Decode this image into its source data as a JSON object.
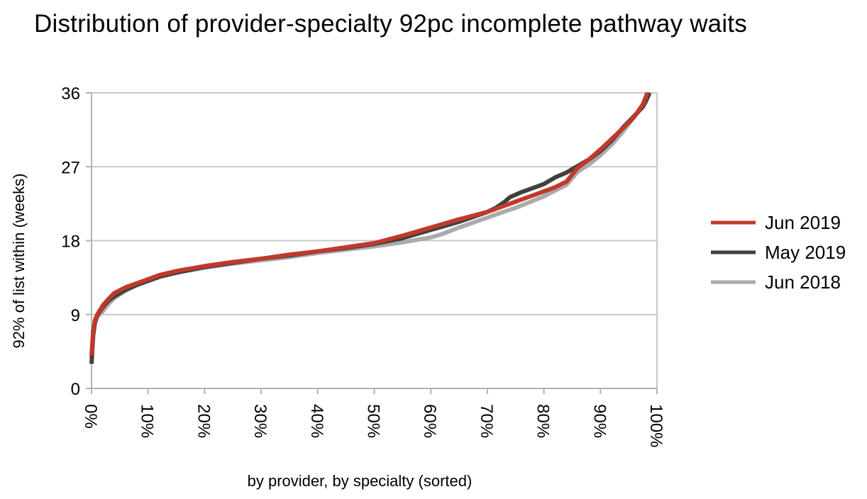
{
  "chart_data": {
    "type": "line",
    "title": "Distribution of provider-specialty 92pc incomplete pathway waits",
    "xlabel": "by provider, by specialty (sorted)",
    "ylabel": "92% of list within (weeks)",
    "xlim": [
      0,
      100
    ],
    "ylim": [
      0,
      36
    ],
    "xticks": [
      0,
      10,
      20,
      30,
      40,
      50,
      60,
      70,
      80,
      90,
      100
    ],
    "xtick_labels": [
      "0%",
      "10%",
      "20%",
      "30%",
      "40%",
      "50%",
      "60%",
      "70%",
      "80%",
      "90%",
      "100%"
    ],
    "yticks": [
      0,
      9,
      18,
      27,
      36
    ],
    "ytick_labels": [
      "0",
      "9",
      "18",
      "27",
      "36"
    ],
    "grid": "horizontal",
    "legend": "right",
    "series": [
      {
        "name": "Jun 2018",
        "color": "#ababab",
        "x": [
          0,
          0.3,
          0.6,
          1,
          2,
          3,
          4,
          6,
          8,
          10,
          12,
          15,
          20,
          25,
          30,
          35,
          40,
          45,
          50,
          55,
          60,
          62,
          65,
          70,
          72,
          75,
          80,
          82,
          84,
          86,
          88,
          90,
          92,
          94,
          96,
          98,
          98.7
        ],
        "y": [
          3.8,
          6.8,
          8.0,
          8.7,
          9.4,
          10.3,
          11.0,
          11.9,
          12.6,
          13.1,
          13.6,
          14.1,
          14.7,
          15.2,
          15.6,
          16.0,
          16.5,
          16.9,
          17.3,
          17.8,
          18.4,
          18.8,
          19.6,
          20.8,
          21.3,
          22.0,
          23.4,
          24.1,
          24.8,
          26.4,
          27.3,
          28.4,
          29.7,
          31.3,
          33.1,
          34.8,
          36.0
        ]
      },
      {
        "name": "May 2019",
        "color": "#404040",
        "x": [
          0,
          0.3,
          0.6,
          1,
          2,
          3,
          4,
          6,
          8,
          10,
          12,
          15,
          20,
          25,
          30,
          35,
          40,
          45,
          50,
          55,
          60,
          65,
          70,
          71.5,
          73,
          74,
          76,
          78,
          80,
          82,
          84,
          86,
          88,
          90,
          92,
          94,
          96,
          97.5,
          98.7
        ],
        "y": [
          3.0,
          6.5,
          8.0,
          8.9,
          9.9,
          10.7,
          11.2,
          12.0,
          12.6,
          13.1,
          13.6,
          14.1,
          14.8,
          15.3,
          15.8,
          16.2,
          16.7,
          17.1,
          17.6,
          18.3,
          19.3,
          20.3,
          21.5,
          22.0,
          22.7,
          23.3,
          23.9,
          24.4,
          24.9,
          25.7,
          26.3,
          27.1,
          27.9,
          28.9,
          30.2,
          31.8,
          33.2,
          34.3,
          36.0
        ]
      },
      {
        "name": "Jun 2019",
        "color": "#c0392b",
        "x": [
          0,
          0.3,
          0.6,
          1,
          2,
          3,
          4,
          6,
          8,
          10,
          12,
          15,
          20,
          25,
          30,
          35,
          40,
          45,
          50,
          55,
          60,
          65,
          70,
          72,
          74,
          76,
          78,
          80,
          82,
          84,
          86,
          88,
          90,
          92,
          94,
          96,
          97.5,
          98.3
        ],
        "y": [
          4.0,
          7.0,
          8.3,
          9.0,
          10.1,
          10.9,
          11.6,
          12.3,
          12.8,
          13.3,
          13.8,
          14.3,
          14.9,
          15.4,
          15.8,
          16.3,
          16.7,
          17.2,
          17.7,
          18.6,
          19.6,
          20.6,
          21.5,
          22.0,
          22.5,
          23.0,
          23.5,
          24.0,
          24.5,
          25.2,
          26.9,
          27.9,
          29.1,
          30.4,
          31.7,
          33.1,
          34.6,
          36.0
        ]
      }
    ]
  }
}
